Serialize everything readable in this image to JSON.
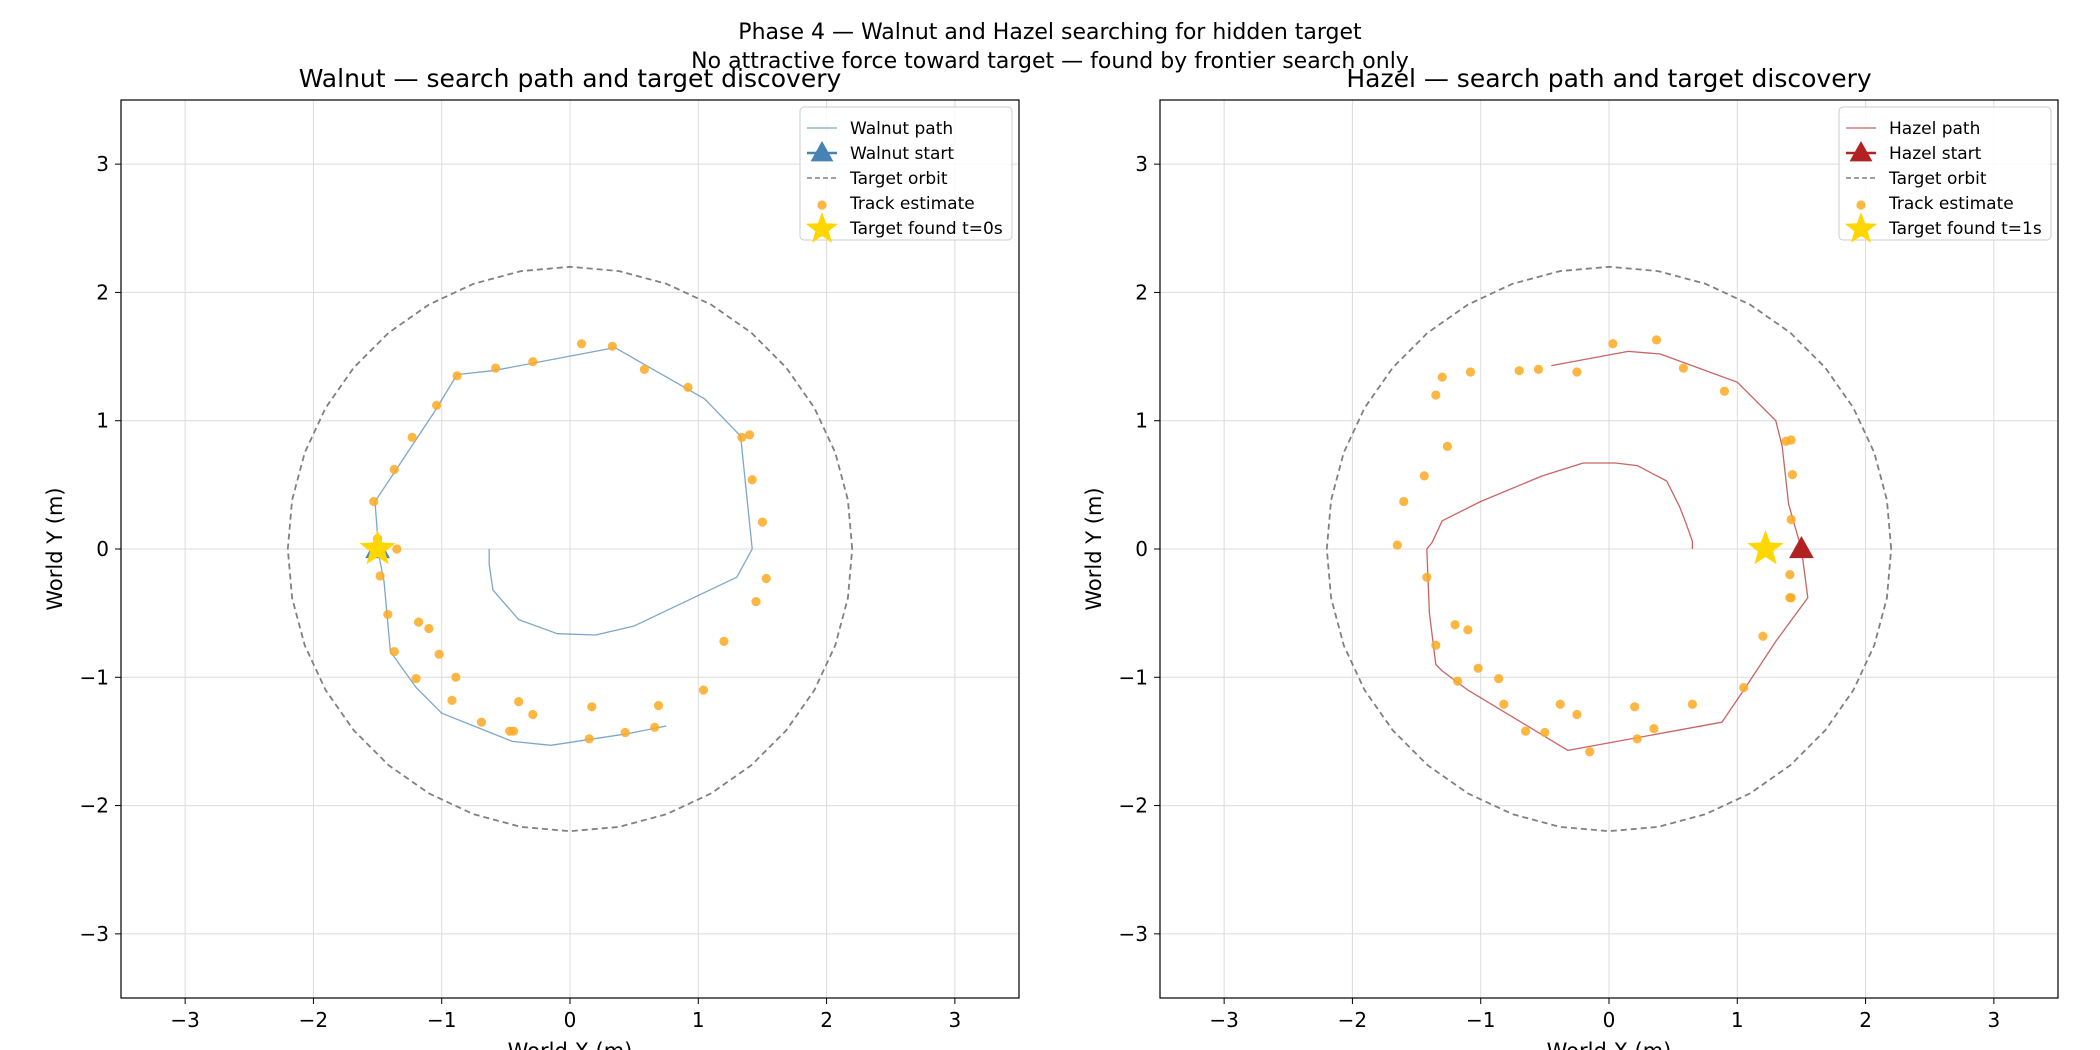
{
  "figure": {
    "title": "Phase 4 — Walnut and Hazel searching for hidden target",
    "subtitle": "No attractive force toward target — found by frontier search only"
  },
  "chart_data": [
    {
      "type": "line",
      "title": "Walnut — search path and target discovery",
      "xlabel": "World X (m)",
      "ylabel": "World Y (m)",
      "xlim": [
        -3.5,
        3.5
      ],
      "ylim": [
        -3.5,
        3.5
      ],
      "xticks": [
        -3,
        -2,
        -1,
        0,
        1,
        2,
        3
      ],
      "yticks": [
        -3,
        -2,
        -1,
        0,
        1,
        2,
        3
      ],
      "grid": true,
      "aspect": "equal",
      "legend_position": "top-right",
      "legend": [
        "Walnut path",
        "Walnut start",
        "Target orbit",
        "Track estimate",
        "Target found t=0s"
      ],
      "colors": {
        "path": "#4682b4",
        "start": "#4682b4",
        "orbit": "#808080",
        "track": "#fbaa22",
        "found": "#ffd700"
      },
      "target_orbit": {
        "center": [
          0,
          0
        ],
        "radius": 2.2
      },
      "path": {
        "x": [
          -0.63,
          -0.63,
          -0.6,
          -0.4,
          -0.1,
          0.2,
          0.5,
          1.3,
          1.42,
          1.33,
          1.05,
          0.35,
          -0.6,
          -0.88,
          -1.05,
          -1.4,
          -1.52,
          -1.5,
          -1.5,
          -1.45,
          -1.4,
          -1.2,
          -1.0,
          -0.75,
          -0.45,
          -0.15,
          0.45,
          0.75
        ],
        "y": [
          0.0,
          -0.12,
          -0.32,
          -0.55,
          -0.66,
          -0.67,
          -0.6,
          -0.22,
          0.0,
          0.88,
          1.17,
          1.57,
          1.39,
          1.36,
          1.08,
          0.55,
          0.37,
          0.1,
          0.0,
          -0.25,
          -0.8,
          -1.08,
          -1.28,
          -1.38,
          -1.5,
          -1.53,
          -1.44,
          -1.38
        ]
      },
      "start": [
        -1.5,
        0.0
      ],
      "track_estimate": {
        "x": [
          -1.5,
          -1.53,
          -1.52,
          -1.37,
          -1.23,
          -1.04,
          -0.88,
          -0.58,
          -0.29,
          0.09,
          0.33,
          0.58,
          0.92,
          1.34,
          1.4,
          1.42,
          1.5,
          1.53,
          1.45,
          1.2,
          1.04,
          0.69,
          0.66,
          0.43,
          0.17,
          0.15,
          -0.29,
          -0.4,
          -0.44,
          -0.47,
          -0.69,
          -0.92,
          -0.89,
          -1.02,
          -1.1,
          -1.18,
          -1.2,
          -1.37,
          -1.42,
          -1.48,
          -1.35
        ],
        "y": [
          0.08,
          0.37,
          0.0,
          0.62,
          0.87,
          1.12,
          1.35,
          1.41,
          1.46,
          1.6,
          1.58,
          1.4,
          1.26,
          0.87,
          0.89,
          0.54,
          0.21,
          -0.23,
          -0.41,
          -0.72,
          -1.1,
          -1.22,
          -1.39,
          -1.43,
          -1.23,
          -1.48,
          -1.29,
          -1.19,
          -1.42,
          -1.42,
          -1.35,
          -1.18,
          -1.0,
          -0.82,
          -0.62,
          -0.57,
          -1.01,
          -0.8,
          -0.51,
          -0.21,
          0.0
        ]
      },
      "found": {
        "label": "Target found t=0s",
        "point": [
          -1.5,
          0.0
        ]
      }
    },
    {
      "type": "line",
      "title": "Hazel — search path and target discovery",
      "xlabel": "World X (m)",
      "ylabel": "World Y (m)",
      "xlim": [
        -3.5,
        3.5
      ],
      "ylim": [
        -3.5,
        3.5
      ],
      "xticks": [
        -3,
        -2,
        -1,
        0,
        1,
        2,
        3
      ],
      "yticks": [
        -3,
        -2,
        -1,
        0,
        1,
        2,
        3
      ],
      "grid": true,
      "aspect": "equal",
      "legend_position": "top-right",
      "legend": [
        "Hazel path",
        "Hazel start",
        "Target orbit",
        "Track estimate",
        "Target found t=1s"
      ],
      "colors": {
        "path": "#b22222",
        "start": "#b22222",
        "orbit": "#808080",
        "track": "#fbaa22",
        "found": "#ffd700"
      },
      "target_orbit": {
        "center": [
          0,
          0
        ],
        "radius": 2.2
      },
      "path": {
        "x": [
          0.65,
          0.65,
          0.6,
          0.55,
          0.45,
          0.22,
          0.05,
          -0.2,
          -0.52,
          -1.0,
          -1.3,
          -1.38,
          -1.42,
          -1.4,
          -1.35,
          -1.3,
          -1.1,
          -0.32,
          0.88,
          1.05,
          1.3,
          1.55,
          1.5,
          1.4,
          1.35,
          1.3,
          1.0,
          0.4,
          0.15,
          -0.45
        ],
        "y": [
          0.0,
          0.06,
          0.2,
          0.33,
          0.53,
          0.65,
          0.67,
          0.67,
          0.57,
          0.37,
          0.22,
          0.05,
          0.0,
          -0.5,
          -0.9,
          -0.95,
          -1.1,
          -1.57,
          -1.35,
          -1.1,
          -0.72,
          -0.38,
          0.0,
          0.35,
          0.8,
          1.0,
          1.3,
          1.52,
          1.54,
          1.43
        ]
      },
      "start": [
        1.5,
        0.0
      ],
      "track_estimate": {
        "x": [
          0.03,
          0.37,
          0.58,
          0.9,
          1.42,
          1.38,
          1.43,
          1.42,
          1.41,
          1.42,
          1.41,
          1.2,
          1.05,
          0.65,
          0.35,
          0.2,
          0.22,
          -0.15,
          -0.25,
          -0.38,
          -0.5,
          -0.65,
          -0.82,
          -0.86,
          -1.02,
          -1.1,
          -1.18,
          -1.2,
          -1.35,
          -1.42,
          -1.65,
          -1.6,
          -1.44,
          -1.26,
          -1.35,
          -1.3,
          -1.08,
          -0.7,
          -0.55,
          -0.25
        ],
        "y": [
          1.6,
          1.63,
          1.41,
          1.23,
          0.85,
          0.84,
          0.58,
          0.23,
          -0.2,
          -0.38,
          -0.38,
          -0.68,
          -1.08,
          -1.21,
          -1.4,
          -1.23,
          -1.48,
          -1.58,
          -1.29,
          -1.21,
          -1.43,
          -1.42,
          -1.21,
          -1.01,
          -0.93,
          -0.63,
          -1.03,
          -0.59,
          -0.75,
          -0.22,
          0.03,
          0.37,
          0.57,
          0.8,
          1.2,
          1.34,
          1.38,
          1.39,
          1.4,
          1.38
        ]
      },
      "found": {
        "label": "Target found t=1s",
        "point": [
          1.22,
          0.0
        ]
      }
    }
  ]
}
